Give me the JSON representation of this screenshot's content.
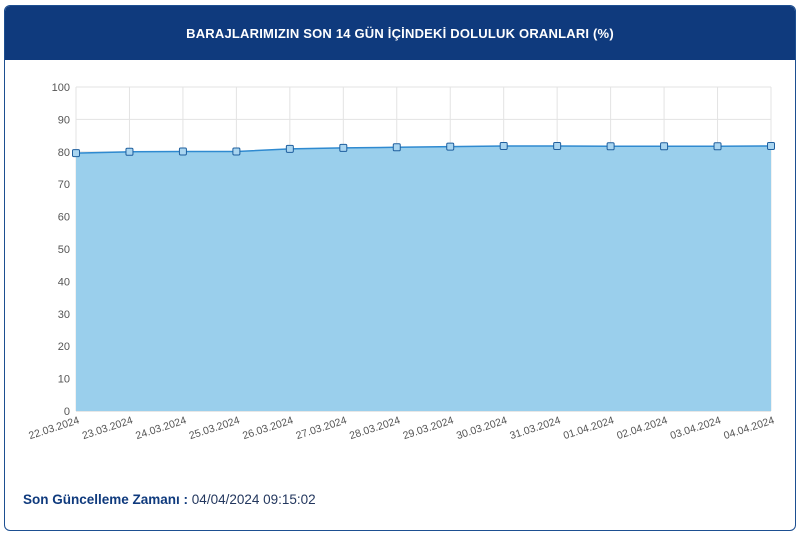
{
  "header": {
    "title": "BARAJLARIMIZIN SON 14 GÜN İÇİNDEKİ DOLULUK ORANLARI (%)"
  },
  "footer": {
    "label": "Son Güncelleme Zamanı",
    "separator": " : ",
    "value": "04/04/2024 09:15:02"
  },
  "colors": {
    "header_bg": "#0f3a7d",
    "area_fill": "#9acfec",
    "line": "#2f8ad0",
    "marker_fill": "#a9d5f0",
    "marker_stroke": "#1f5f9e"
  },
  "chart_data": {
    "type": "area",
    "title": "BARAJLARIMIZIN SON 14 GÜN İÇİNDEKİ DOLULUK ORANLARI (%)",
    "xlabel": "",
    "ylabel": "",
    "categories": [
      "22.03.2024",
      "23.03.2024",
      "24.03.2024",
      "25.03.2024",
      "26.03.2024",
      "27.03.2024",
      "28.03.2024",
      "29.03.2024",
      "30.03.2024",
      "31.03.2024",
      "01.04.2024",
      "02.04.2024",
      "03.04.2024",
      "04.04.2024"
    ],
    "values": [
      79.6,
      80.0,
      80.1,
      80.1,
      80.9,
      81.2,
      81.4,
      81.6,
      81.8,
      81.8,
      81.7,
      81.7,
      81.7,
      81.8
    ],
    "ylim": [
      0,
      100
    ],
    "yticks": [
      0,
      10,
      20,
      30,
      40,
      50,
      60,
      70,
      80,
      90,
      100
    ],
    "grid": true,
    "legend": "none"
  }
}
